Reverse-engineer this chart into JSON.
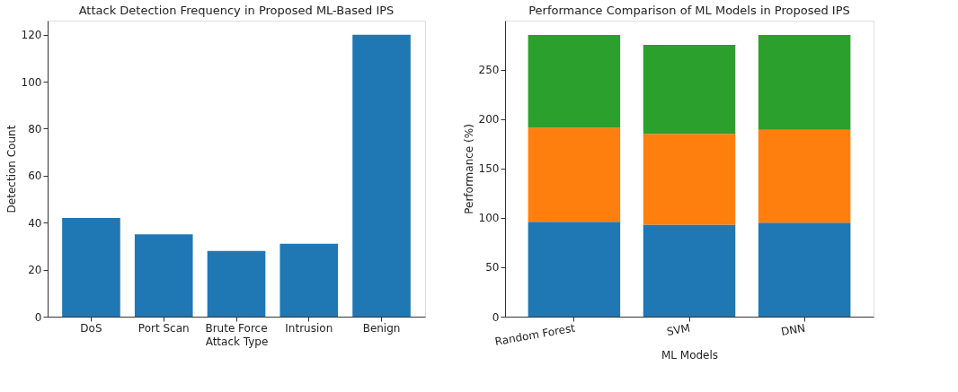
{
  "chart_data": [
    {
      "type": "bar",
      "title": "Attack Detection Frequency in Proposed ML-Based IPS",
      "xlabel": "Attack Type",
      "ylabel": "Detection Count",
      "categories": [
        "DoS",
        "Port Scan",
        "Brute Force",
        "Intrusion",
        "Benign"
      ],
      "values": [
        42,
        35,
        28,
        31,
        120
      ],
      "color": "#1f77b4",
      "ylim": [
        0,
        126
      ],
      "yticks": [
        0,
        20,
        40,
        60,
        80,
        100,
        120
      ],
      "grid": false,
      "legend": false
    },
    {
      "type": "bar",
      "stacked": true,
      "title": "Performance Comparison of ML Models in Proposed IPS",
      "xlabel": "ML Models",
      "ylabel": "Performance (%)",
      "categories": [
        "Random Forest",
        "SVM",
        "DNN"
      ],
      "series": [
        {
          "color": "#1f77b4",
          "values": [
            96,
            93,
            95
          ]
        },
        {
          "color": "#ff7f0e",
          "values": [
            95,
            92,
            94
          ]
        },
        {
          "color": "#2ca02c",
          "values": [
            94,
            90,
            96
          ]
        }
      ],
      "ylim": [
        0,
        299.5
      ],
      "yticks": [
        0,
        50,
        100,
        150,
        200,
        250
      ],
      "grid": false,
      "legend": false
    }
  ]
}
